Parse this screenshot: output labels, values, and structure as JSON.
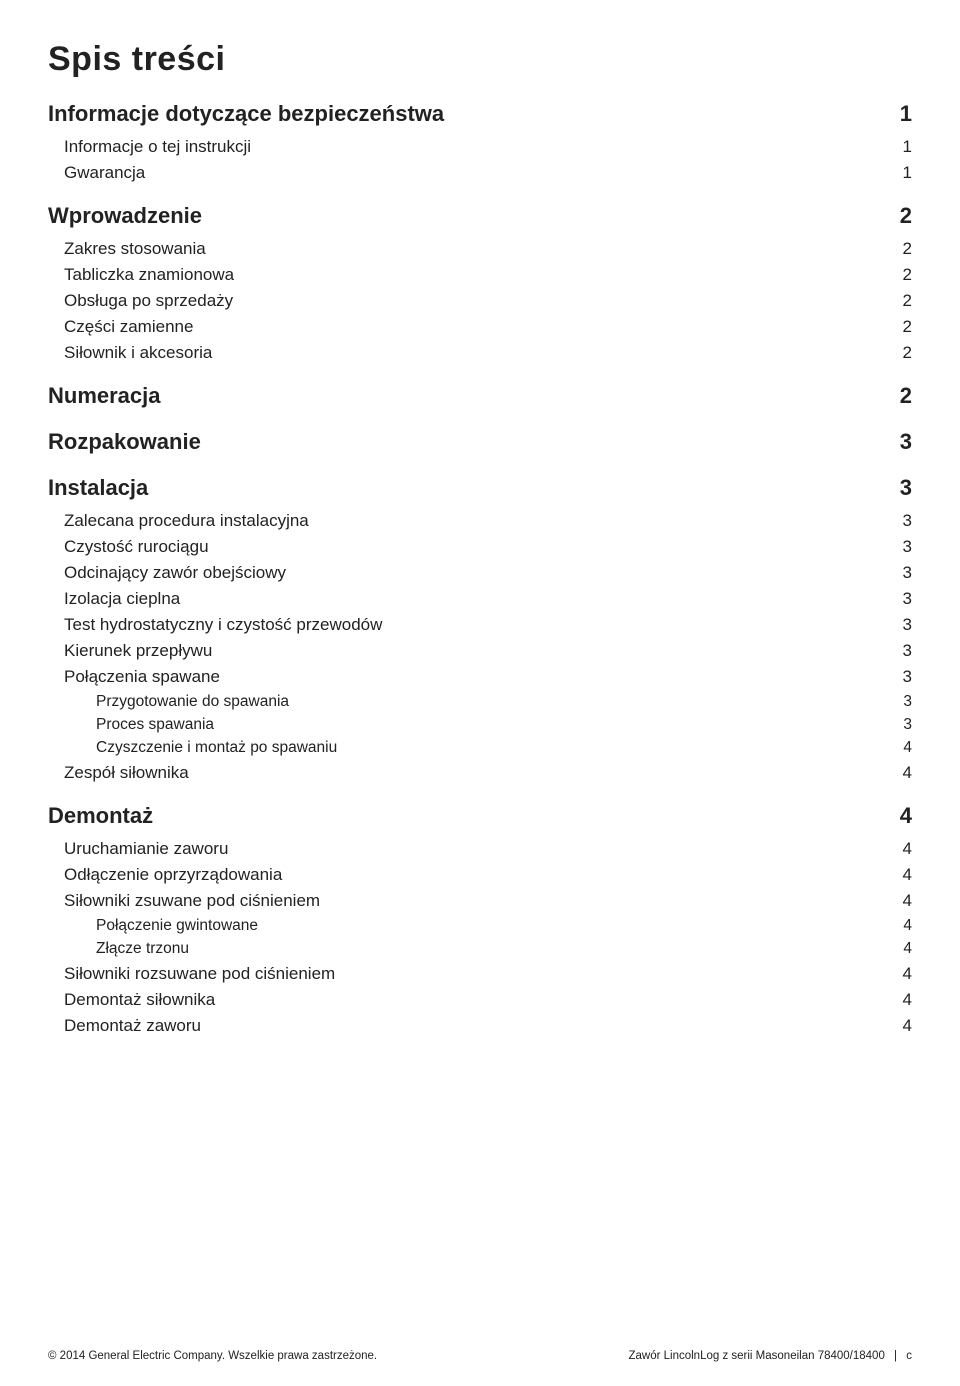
{
  "title": "Spis treści",
  "toc": [
    {
      "level": 1,
      "label": "Informacje dotyczące bezpieczeństwa",
      "page": "1"
    },
    {
      "level": 2,
      "label": "Informacje o tej instrukcji",
      "page": "1"
    },
    {
      "level": 2,
      "label": "Gwarancja",
      "page": "1"
    },
    {
      "level": 1,
      "label": "Wprowadzenie",
      "page": "2"
    },
    {
      "level": 2,
      "label": "Zakres stosowania",
      "page": "2"
    },
    {
      "level": 2,
      "label": "Tabliczka znamionowa",
      "page": "2"
    },
    {
      "level": 2,
      "label": "Obsługa po sprzedaży",
      "page": "2"
    },
    {
      "level": 2,
      "label": "Części zamienne",
      "page": "2"
    },
    {
      "level": 2,
      "label": "Siłownik i akcesoria",
      "page": "2"
    },
    {
      "level": 1,
      "label": "Numeracja",
      "page": "2"
    },
    {
      "level": 1,
      "label": "Rozpakowanie",
      "page": "3"
    },
    {
      "level": 1,
      "label": "Instalacja",
      "page": "3"
    },
    {
      "level": 2,
      "label": "Zalecana procedura instalacyjna",
      "page": "3"
    },
    {
      "level": 2,
      "label": "Czystość rurociągu",
      "page": "3"
    },
    {
      "level": 2,
      "label": "Odcinający zawór obejściowy",
      "page": "3"
    },
    {
      "level": 2,
      "label": "Izolacja cieplna",
      "page": "3"
    },
    {
      "level": 2,
      "label": "Test hydrostatyczny i czystość przewodów",
      "page": "3"
    },
    {
      "level": 2,
      "label": "Kierunek przepływu",
      "page": "3"
    },
    {
      "level": 2,
      "label": "Połączenia spawane",
      "page": "3"
    },
    {
      "level": 3,
      "label": "Przygotowanie do spawania",
      "page": "3"
    },
    {
      "level": 3,
      "label": "Proces spawania",
      "page": "3"
    },
    {
      "level": 3,
      "label": "Czyszczenie i montaż po spawaniu",
      "page": "4"
    },
    {
      "level": 2,
      "label": "Zespół siłownika",
      "page": "4"
    },
    {
      "level": 1,
      "label": "Demontaż",
      "page": "4"
    },
    {
      "level": 2,
      "label": "Uruchamianie zaworu",
      "page": "4"
    },
    {
      "level": 2,
      "label": "Odłączenie oprzyrządowania",
      "page": "4"
    },
    {
      "level": 2,
      "label": "Siłowniki zsuwane pod ciśnieniem",
      "page": "4"
    },
    {
      "level": 3,
      "label": "Połączenie gwintowane",
      "page": "4"
    },
    {
      "level": 3,
      "label": "Złącze trzonu",
      "page": "4"
    },
    {
      "level": 2,
      "label": "Siłowniki rozsuwane pod ciśnieniem",
      "page": "4"
    },
    {
      "level": 2,
      "label": "Demontaż siłownika",
      "page": "4"
    },
    {
      "level": 2,
      "label": "Demontaż zaworu",
      "page": "4"
    }
  ],
  "footer": {
    "left": "© 2014 General Electric Company. Wszelkie prawa zastrzeżone.",
    "right_doc": "Zawór LincolnLog z serii Masoneilan 78400/18400",
    "right_page": "c"
  },
  "colors": {
    "text": "#222222",
    "background": "#ffffff"
  },
  "typography": {
    "title_fontsize": 34,
    "lvl1_fontsize": 22,
    "lvl2_fontsize": 17,
    "lvl3_fontsize": 15.5,
    "footer_fontsize": 11.5,
    "font_family": "Arial"
  }
}
